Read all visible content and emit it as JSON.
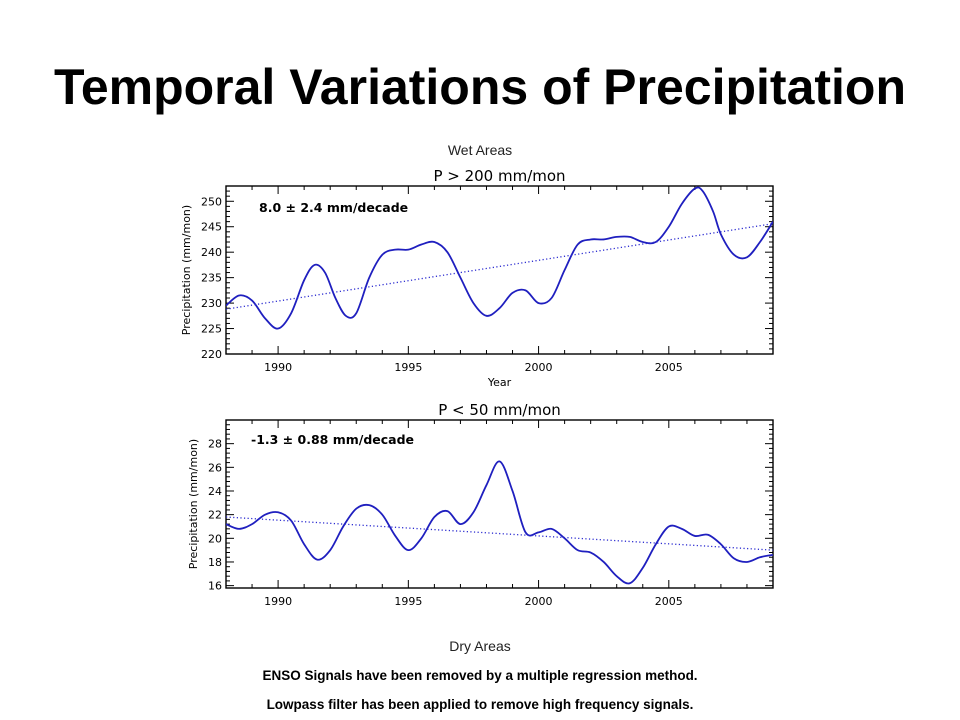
{
  "slide": {
    "title": "Temporal Variations of Precipitation",
    "caption_top": "Wet Areas",
    "caption_bottom": "Dry Areas",
    "note_1": "ENSO Signals have been removed by a multiple regression method.",
    "note_2": "Lowpass filter has been applied to remove high frequency signals."
  },
  "colors": {
    "series": "#1f1fbf",
    "trend": "#2a2ad0",
    "axis": "#000000"
  },
  "chart_data": [
    {
      "type": "line",
      "title": "P > 200 mm/mon",
      "xlabel": "Year",
      "ylabel": "Precipitation (mm/mon)",
      "xlim": [
        1988,
        2009
      ],
      "ylim": [
        220,
        253
      ],
      "xticks": [
        1990,
        1995,
        2000,
        2005
      ],
      "yticks": [
        220,
        225,
        230,
        235,
        240,
        245,
        250
      ],
      "annotation": "8.0 ± 2.4 mm/decade",
      "series": [
        {
          "x": [
            1988.0,
            1988.5,
            1989.0,
            1989.5,
            1990.0,
            1990.5,
            1991.0,
            1991.4,
            1991.8,
            1992.2,
            1992.6,
            1993.0,
            1993.5,
            1994.0,
            1994.5,
            1995.0,
            1995.5,
            1996.0,
            1996.5,
            1997.0,
            1997.5,
            1998.0,
            1998.5,
            1999.0,
            1999.5,
            2000.0,
            2000.5,
            2001.0,
            2001.5,
            2002.0,
            2002.5,
            2003.0,
            2003.5,
            2004.0,
            2004.5,
            2005.0,
            2005.5,
            2006.0,
            2006.3,
            2006.7,
            2007.0,
            2007.5,
            2008.0,
            2008.5,
            2009.0
          ],
          "y": [
            229.5,
            231.5,
            230.5,
            227.0,
            225.0,
            228.0,
            234.5,
            237.5,
            236.0,
            231.0,
            227.5,
            228.0,
            235.0,
            239.5,
            240.5,
            240.5,
            241.5,
            242.0,
            240.0,
            235.0,
            230.0,
            227.5,
            229.0,
            232.0,
            232.5,
            230.0,
            231.0,
            236.5,
            241.5,
            242.5,
            242.5,
            243.0,
            243.0,
            242.0,
            242.0,
            245.0,
            249.5,
            252.5,
            252.0,
            248.0,
            243.5,
            239.5,
            239.0,
            242.0,
            246.0
          ]
        },
        {
          "name": "",
          "style": "dotted",
          "x": [
            1988,
            2009
          ],
          "y": [
            228.8,
            245.6
          ]
        }
      ]
    },
    {
      "type": "line",
      "title": "P < 50 mm/mon",
      "xlabel": "",
      "ylabel": "Precipitation (mm/mon)",
      "xlim": [
        1988,
        2009
      ],
      "ylim": [
        15.8,
        30.0
      ],
      "xticks": [
        1990,
        1995,
        2000,
        2005
      ],
      "yticks": [
        16,
        18,
        20,
        22,
        24,
        26,
        28
      ],
      "annotation": "-1.3 ± 0.88 mm/decade",
      "series": [
        {
          "x": [
            1988.0,
            1988.5,
            1989.0,
            1989.5,
            1990.0,
            1990.5,
            1991.0,
            1991.5,
            1992.0,
            1992.5,
            1993.0,
            1993.5,
            1994.0,
            1994.5,
            1995.0,
            1995.5,
            1996.0,
            1996.5,
            1997.0,
            1997.5,
            1998.0,
            1998.5,
            1999.0,
            1999.5,
            2000.0,
            2000.5,
            2001.0,
            2001.5,
            2002.0,
            2002.5,
            2003.0,
            2003.5,
            2004.0,
            2004.5,
            2005.0,
            2005.5,
            2006.0,
            2006.5,
            2007.0,
            2007.5,
            2008.0,
            2008.5,
            2009.0
          ],
          "y": [
            21.2,
            20.8,
            21.2,
            22.0,
            22.2,
            21.5,
            19.5,
            18.2,
            19.0,
            21.0,
            22.5,
            22.8,
            22.0,
            20.2,
            19.0,
            20.0,
            21.8,
            22.3,
            21.2,
            22.2,
            24.5,
            26.5,
            24.0,
            20.5,
            20.5,
            20.8,
            20.0,
            19.0,
            18.8,
            18.0,
            16.8,
            16.2,
            17.5,
            19.5,
            21.0,
            20.8,
            20.2,
            20.3,
            19.5,
            18.3,
            18.0,
            18.4,
            18.6
          ]
        },
        {
          "name": "",
          "style": "dotted",
          "x": [
            1988,
            2009
          ],
          "y": [
            21.8,
            19.0
          ]
        }
      ]
    }
  ]
}
